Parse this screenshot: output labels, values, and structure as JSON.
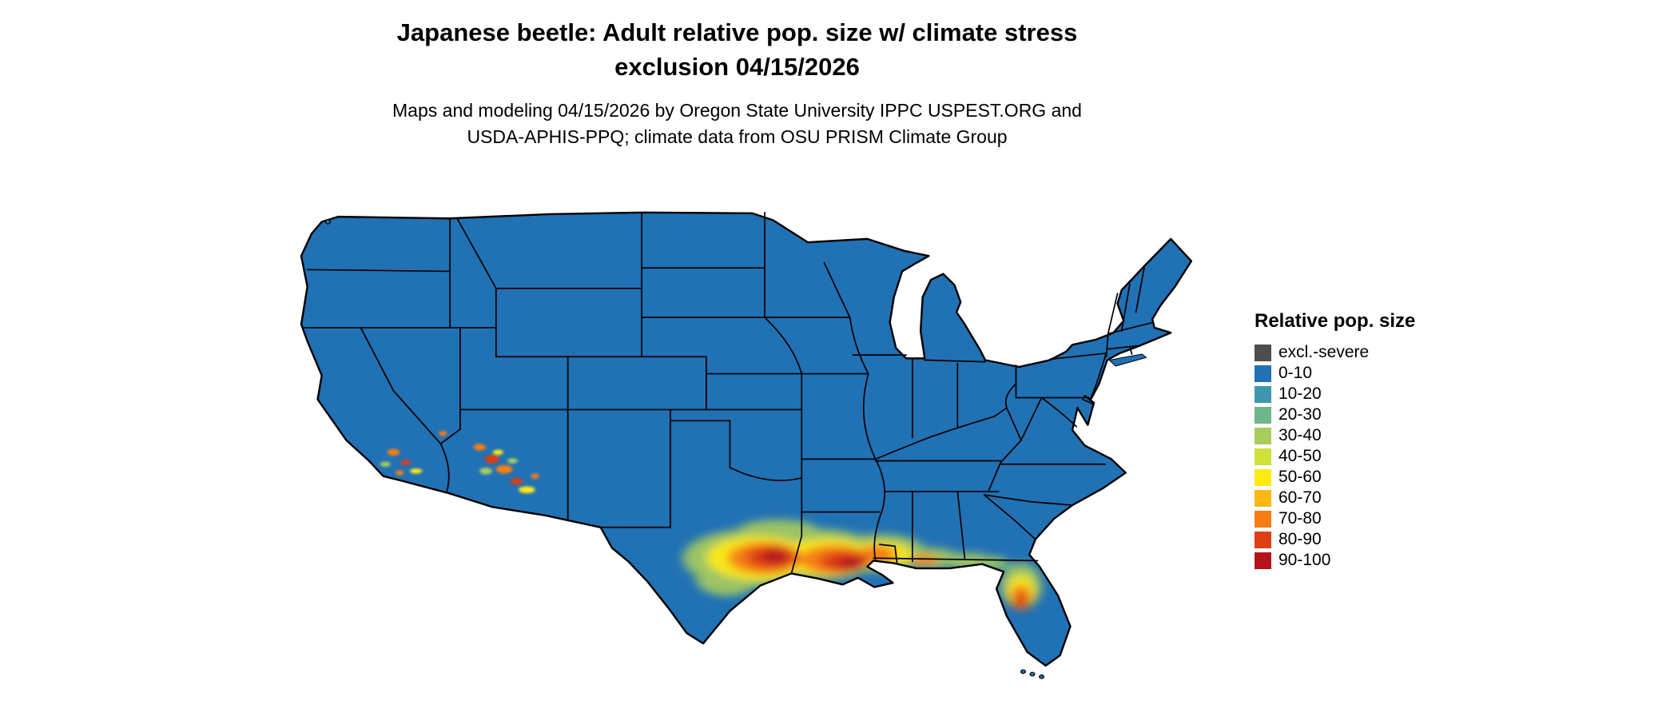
{
  "title": {
    "line1": "Japanese beetle: Adult relative pop. size w/ climate stress",
    "line2": "exclusion 04/15/2026"
  },
  "subtitle": {
    "line1": "Maps and modeling 04/15/2026 by Oregon State University IPPC USPEST.ORG and",
    "line2": "USDA-APHIS-PPQ; climate data from OSU PRISM Climate Group"
  },
  "legend": {
    "title": "Relative pop. size",
    "items": [
      {
        "label": "excl.-severe",
        "color": "#4d4d4d"
      },
      {
        "label": "0-10",
        "color": "#2171b5"
      },
      {
        "label": "10-20",
        "color": "#3f97ae"
      },
      {
        "label": "20-30",
        "color": "#6fb68a"
      },
      {
        "label": "30-40",
        "color": "#a9cd5d"
      },
      {
        "label": "40-50",
        "color": "#cfe03b"
      },
      {
        "label": "50-60",
        "color": "#fdea15"
      },
      {
        "label": "60-70",
        "color": "#fdb813"
      },
      {
        "label": "70-80",
        "color": "#f57e14"
      },
      {
        "label": "80-90",
        "color": "#dd3e14"
      },
      {
        "label": "90-100",
        "color": "#b5121b"
      }
    ]
  },
  "map": {
    "land_color": "#2171b5",
    "border_color": "#000000",
    "dominant_class": "0-10",
    "hotspots": [
      {
        "area": "south-central and coastal Texas",
        "classes": "30-100, red core 80-100"
      },
      {
        "area": "Louisiana / central Gulf Coast",
        "classes": "40-100, red core 80-100"
      },
      {
        "area": "southern Mississippi-Alabama coast",
        "classes": "30-80"
      },
      {
        "area": "central Florida peninsula",
        "classes": "40-100"
      },
      {
        "area": "southern Arizona (scattered)",
        "classes": "40-90"
      },
      {
        "area": "southern California (scattered)",
        "classes": "30-90"
      },
      {
        "area": "southern Nevada tip (trace)",
        "classes": "40-70"
      }
    ]
  }
}
